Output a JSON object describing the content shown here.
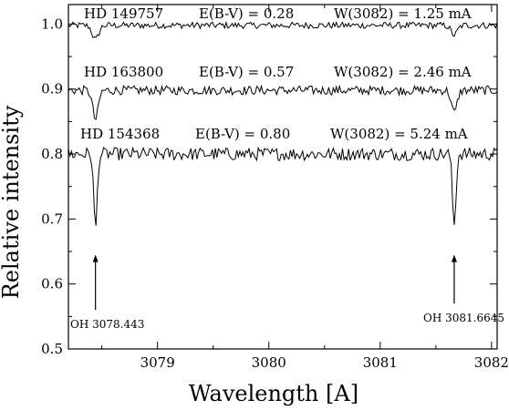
{
  "chart_data": {
    "type": "line",
    "xlabel": "Wavelength [A]",
    "ylabel": "Relative intensity",
    "xlim": [
      3078.2,
      3082.05
    ],
    "ylim": [
      0.5,
      1.03
    ],
    "x_ticks": [
      3079,
      3080,
      3081,
      3082
    ],
    "y_ticks": [
      0.5,
      0.6,
      0.7,
      0.8,
      0.9,
      1.0
    ],
    "x_tick_labels": [
      "3079",
      "3080",
      "3081",
      "3082"
    ],
    "y_tick_labels": [
      "0.5",
      "0.6",
      "0.7",
      "0.8",
      "0.9",
      "1.0"
    ],
    "grid": false,
    "series": [
      {
        "name": "HD 149757",
        "ebv": "E(B-V) = 0.28",
        "ew": "W(3082) = 1.25 mA",
        "continuum": 0.998,
        "noise": 0.005,
        "lines": [
          {
            "center": 3078.443,
            "depth": 0.022,
            "width": 0.04
          },
          {
            "center": 3081.6645,
            "depth": 0.015,
            "width": 0.04
          }
        ]
      },
      {
        "name": "HD 163800",
        "ebv": "E(B-V) = 0.57",
        "ew": "W(3082) = 2.46 mA",
        "continuum": 0.898,
        "noise": 0.007,
        "lines": [
          {
            "center": 3078.443,
            "depth": 0.045,
            "width": 0.035
          },
          {
            "center": 3081.6645,
            "depth": 0.035,
            "width": 0.035
          }
        ]
      },
      {
        "name": "HD 154368",
        "ebv": "E(B-V) = 0.80",
        "ew": "W(3082) = 5.24 mA",
        "continuum": 0.8,
        "noise": 0.01,
        "lines": [
          {
            "center": 3078.443,
            "depth": 0.115,
            "width": 0.022
          },
          {
            "center": 3081.6645,
            "depth": 0.11,
            "width": 0.022
          }
        ]
      }
    ],
    "annotations": [
      {
        "text": "OH 3078.443",
        "x": 3078.443,
        "arrow_from": 0.56,
        "arrow_to": 0.645
      },
      {
        "text": "OH 3081.6645",
        "x": 3081.6645,
        "arrow_from": 0.57,
        "arrow_to": 0.645
      }
    ]
  }
}
